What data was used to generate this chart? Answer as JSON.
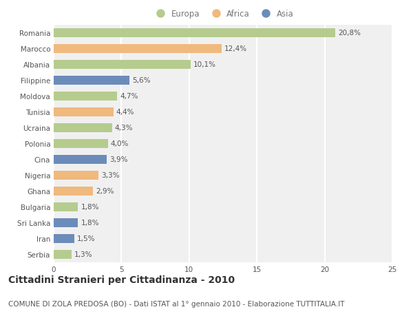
{
  "countries": [
    "Romania",
    "Marocco",
    "Albania",
    "Filippine",
    "Moldova",
    "Tunisia",
    "Ucraina",
    "Polonia",
    "Cina",
    "Nigeria",
    "Ghana",
    "Bulgaria",
    "Sri Lanka",
    "Iran",
    "Serbia"
  ],
  "values": [
    20.8,
    12.4,
    10.1,
    5.6,
    4.7,
    4.4,
    4.3,
    4.0,
    3.9,
    3.3,
    2.9,
    1.8,
    1.8,
    1.5,
    1.3
  ],
  "labels": [
    "20,8%",
    "12,4%",
    "10,1%",
    "5,6%",
    "4,7%",
    "4,4%",
    "4,3%",
    "4,0%",
    "3,9%",
    "3,3%",
    "2,9%",
    "1,8%",
    "1,8%",
    "1,5%",
    "1,3%"
  ],
  "continents": [
    "Europa",
    "Africa",
    "Europa",
    "Asia",
    "Europa",
    "Africa",
    "Europa",
    "Europa",
    "Asia",
    "Africa",
    "Africa",
    "Europa",
    "Asia",
    "Asia",
    "Europa"
  ],
  "colors": {
    "Europa": "#b5cc8e",
    "Africa": "#f0b97d",
    "Asia": "#6b8cba"
  },
  "xlim": [
    0,
    25
  ],
  "xticks": [
    0,
    5,
    10,
    15,
    20,
    25
  ],
  "title": "Cittadini Stranieri per Cittadinanza - 2010",
  "subtitle": "COMUNE DI ZOLA PREDOSA (BO) - Dati ISTAT al 1° gennaio 2010 - Elaborazione TUTTITALIA.IT",
  "background_color": "#ffffff",
  "plot_background_color": "#f0f0f0",
  "grid_color": "#ffffff",
  "bar_height": 0.55,
  "title_fontsize": 10,
  "subtitle_fontsize": 7.5,
  "label_fontsize": 7.5,
  "tick_fontsize": 7.5,
  "legend_fontsize": 8.5
}
